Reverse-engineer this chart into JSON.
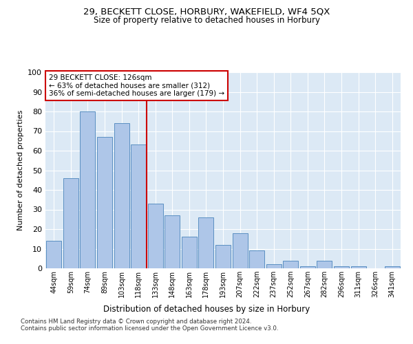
{
  "title1": "29, BECKETT CLOSE, HORBURY, WAKEFIELD, WF4 5QX",
  "title2": "Size of property relative to detached houses in Horbury",
  "xlabel": "Distribution of detached houses by size in Horbury",
  "ylabel": "Number of detached properties",
  "categories": [
    "44sqm",
    "59sqm",
    "74sqm",
    "89sqm",
    "103sqm",
    "118sqm",
    "133sqm",
    "148sqm",
    "163sqm",
    "178sqm",
    "193sqm",
    "207sqm",
    "222sqm",
    "237sqm",
    "252sqm",
    "267sqm",
    "282sqm",
    "296sqm",
    "311sqm",
    "326sqm",
    "341sqm"
  ],
  "values": [
    14,
    46,
    80,
    67,
    74,
    63,
    33,
    27,
    16,
    26,
    12,
    18,
    9,
    2,
    4,
    1,
    4,
    1,
    1,
    0,
    1
  ],
  "bar_color": "#aec6e8",
  "bar_edge_color": "#5a8fc2",
  "vline_x": 5.5,
  "vline_color": "#cc0000",
  "annotation_text": "29 BECKETT CLOSE: 126sqm\n← 63% of detached houses are smaller (312)\n36% of semi-detached houses are larger (179) →",
  "annotation_box_color": "#ffffff",
  "annotation_box_edge": "#cc0000",
  "ylim": [
    0,
    100
  ],
  "yticks": [
    0,
    10,
    20,
    30,
    40,
    50,
    60,
    70,
    80,
    90,
    100
  ],
  "footer1": "Contains HM Land Registry data © Crown copyright and database right 2024.",
  "footer2": "Contains public sector information licensed under the Open Government Licence v3.0.",
  "bg_color": "#dce9f5",
  "fig_bg": "#ffffff"
}
